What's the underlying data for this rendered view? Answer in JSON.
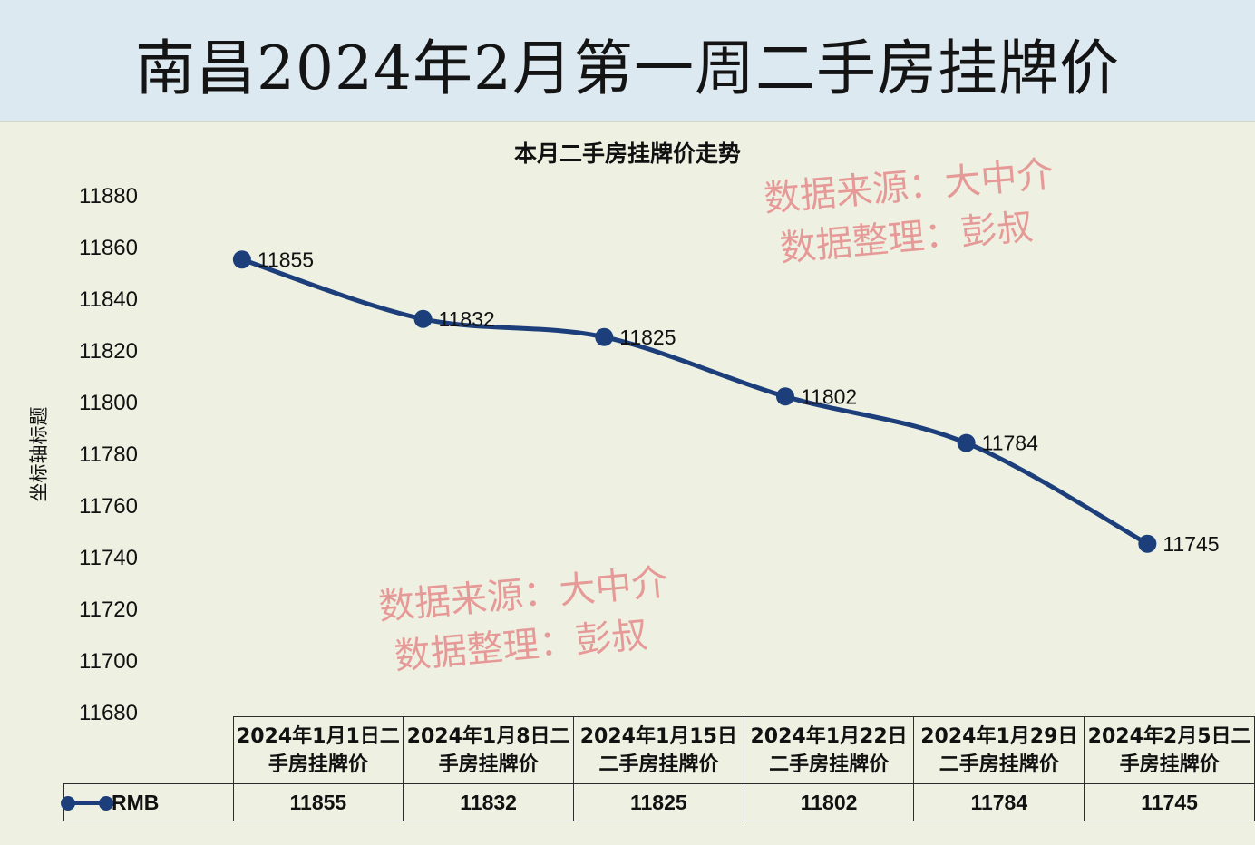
{
  "page": {
    "title": "南昌2024年2月第一周二手房挂牌价"
  },
  "chart_data": {
    "type": "line",
    "title": "本月二手房挂牌价走势",
    "xlabel": "",
    "ylabel": "坐标轴标题",
    "ylim": [
      11680,
      11880
    ],
    "y_ticks": [
      "11880",
      "11860",
      "11840",
      "11820",
      "11800",
      "11780",
      "11760",
      "11740",
      "11720",
      "11700",
      "11680"
    ],
    "categories": [
      "2024年1月1日二手房挂牌价",
      "2024年1月8日二手房挂牌价",
      "2024年1月15日二手房挂牌价",
      "2024年1月22日二手房挂牌价",
      "2024年1月29日二手房挂牌价",
      "2024年2月5日二手房挂牌价"
    ],
    "category_lines": [
      [
        "2024年1月1日二",
        "手房挂牌价"
      ],
      [
        "2024年1月8日二",
        "手房挂牌价"
      ],
      [
        "2024年1月15日",
        "二手房挂牌价"
      ],
      [
        "2024年1月22日",
        "二手房挂牌价"
      ],
      [
        "2024年1月29日",
        "二手房挂牌价"
      ],
      [
        "2024年2月5日二",
        "手房挂牌价"
      ]
    ],
    "series": [
      {
        "name": "RMB",
        "values": [
          11855,
          11832,
          11825,
          11802,
          11784,
          11745
        ],
        "color": "#1c3e7a"
      }
    ],
    "data_labels": true,
    "grid": false,
    "legend": "data-table"
  },
  "watermarks": [
    {
      "line1": "数据来源：大中介",
      "line2": "数据整理：彭叔",
      "color": "#e58c8c"
    },
    {
      "line1": "数据来源：大中介",
      "line2": "数据整理：彭叔",
      "color": "#e58c8c"
    }
  ]
}
